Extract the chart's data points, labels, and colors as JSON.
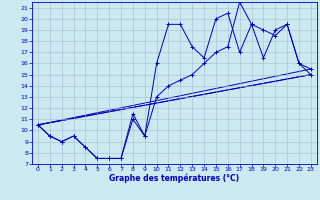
{
  "xlabel": "Graphe des températures (°C)",
  "xlim": [
    -0.5,
    23.5
  ],
  "ylim": [
    7,
    21.5
  ],
  "xticks": [
    0,
    1,
    2,
    3,
    4,
    5,
    6,
    7,
    8,
    9,
    10,
    11,
    12,
    13,
    14,
    15,
    16,
    17,
    18,
    19,
    20,
    21,
    22,
    23
  ],
  "yticks": [
    7,
    8,
    9,
    10,
    11,
    12,
    13,
    14,
    15,
    16,
    17,
    18,
    19,
    20,
    21
  ],
  "bg_color": "#cce8f0",
  "grid_color": "#aabbcc",
  "line_color": "#0000bb",
  "curve1": {
    "x": [
      0,
      1,
      2,
      3,
      4,
      5,
      6,
      7,
      8,
      9,
      10,
      11,
      12,
      13,
      14,
      15,
      16,
      17,
      18,
      19,
      20,
      21,
      22,
      23
    ],
    "y": [
      10.5,
      9.5,
      9.0,
      9.5,
      8.5,
      7.5,
      7.5,
      7.5,
      11.5,
      9.5,
      13.0,
      14.0,
      14.5,
      15.0,
      16.0,
      17.0,
      17.5,
      21.5,
      19.5,
      19.0,
      18.5,
      19.5,
      16.0,
      15.0
    ]
  },
  "curve2": {
    "x": [
      0,
      1,
      2,
      3,
      4,
      5,
      6,
      7,
      8,
      9,
      10,
      11,
      12,
      13,
      14,
      15,
      16,
      17,
      18,
      19,
      20,
      21,
      22,
      23
    ],
    "y": [
      10.5,
      9.5,
      9.0,
      9.5,
      8.5,
      7.5,
      7.5,
      7.5,
      11.0,
      9.5,
      16.0,
      19.5,
      19.5,
      17.5,
      16.5,
      20.0,
      20.5,
      17.0,
      19.5,
      16.5,
      19.0,
      19.5,
      16.0,
      15.5
    ]
  },
  "trend_lines": [
    {
      "x": [
        0,
        23
      ],
      "y": [
        10.5,
        15.5
      ]
    },
    {
      "x": [
        0,
        23
      ],
      "y": [
        10.5,
        15.0
      ]
    },
    {
      "x": [
        0,
        23
      ],
      "y": [
        10.5,
        15.0
      ]
    }
  ]
}
